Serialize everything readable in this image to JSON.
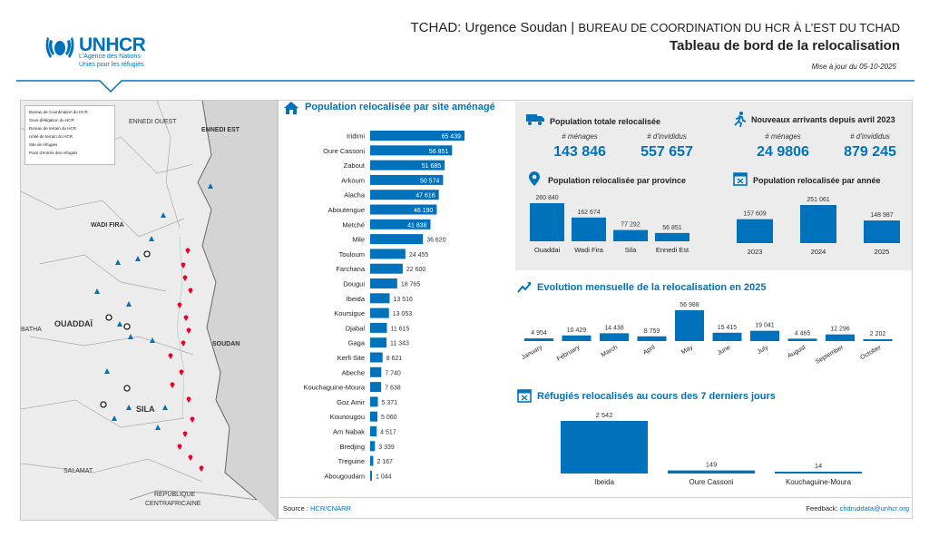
{
  "header": {
    "title_main": "TCHAD: Urgence Soudan",
    "title_sep": " | ",
    "title_sub": "BUREAU DE COORDINATION DU HCR À L’EST DU TCHAD",
    "board": "Tableau de bord de la relocalisation",
    "date": "Mise à jour du 05-10-2025"
  },
  "logo": {
    "name": "UNHCR",
    "line1": "L'Agence des Nations",
    "line2": "Unies pour les réfugiés"
  },
  "map": {
    "labels": {
      "ennedi_ouest": "ENNEDI OUEST",
      "ennedi_ouest2": "",
      "ennedi_est": "ENNEDI EST",
      "wadi_fira": "WADI FIRA",
      "ouaddai": "OUADDAÏ",
      "sila": "SILA",
      "soudan": "SOUDAN",
      "batha": "BATHA",
      "salamat": "SALAMAT",
      "rca1": "REPUBLIQUE",
      "rca2": "CENTRAFRICAINE"
    },
    "legend": [
      "Bureau de Coordination du HCR",
      "Sous-délégation du HCR",
      "Bureau de terrain du HCR",
      "Unité de terrain du HCR",
      "Site de réfugiés",
      "Point d'entrée des réfugiés"
    ]
  },
  "source": {
    "label": "Source : ",
    "value": "HCR/CNARR"
  },
  "feedback": {
    "label": "Feedback: ",
    "value": "chdruddata@unhcr.org"
  },
  "sections": {
    "by_site": "Population relocalisée par site aménagé",
    "total": "Population totale relocalisée",
    "new_arrivals": "Nouveaux arrivants depuis avril 2023",
    "by_province": "Population relocalisée par province",
    "by_year": "Population relocalisée par année",
    "monthly": "Evolution mensuelle de la relocalisation en 2025",
    "last7": "Réfugiés relocalisés au cours des 7 derniers jours"
  },
  "kpis": {
    "total": {
      "menages_label": "# ménages",
      "menages": "143 846",
      "individus_label": "# d'invididus",
      "individus": "557 657"
    },
    "new_arrivals": {
      "menages_label": "# ménages",
      "menages": "24 9806",
      "individus_label": "# d'invididus",
      "individus": "879 245"
    }
  },
  "colors": {
    "accent": "#0072BC",
    "gray_panel": "#ececec",
    "point": "#E4002B"
  },
  "chart_data": [
    {
      "type": "bar",
      "orientation": "horizontal",
      "title": "Population relocalisée par site aménagé",
      "categories": [
        "Iridimi",
        "Oure Cassoni",
        "Zabout",
        "Arkoum",
        "Alacha",
        "Aboutengue",
        "Metché",
        "Mile",
        "Touloum",
        "Farchana",
        "Dougui",
        "Ibeida",
        "Koursigue",
        "Djabal",
        "Gaga",
        "Kerfi Site",
        "Abeche",
        "Kouchaguine-Moura",
        "Goz Amir",
        "Kounougou",
        "Am Nabak",
        "Bredjing",
        "Treguine",
        "Abougoudam"
      ],
      "values": [
        65439,
        56851,
        51685,
        50574,
        47616,
        46190,
        41838,
        36620,
        24455,
        22600,
        18765,
        13516,
        13053,
        11615,
        11343,
        8621,
        7740,
        7638,
        5371,
        5060,
        4517,
        3339,
        2167,
        1044
      ],
      "labels": [
        "65 439",
        "56 851",
        "51 685",
        "50 574",
        "47 616",
        "46 190",
        "41 838",
        "36 620",
        "24 455",
        "22 600",
        "18 765",
        "13 516",
        "13 053",
        "11 615",
        "11 343",
        "8 621",
        "7 740",
        "7 638",
        "5 371",
        "5 060",
        "4 517",
        "3 339",
        "2 167",
        "1 044"
      ]
    },
    {
      "type": "bar",
      "title": "Population relocalisée par province",
      "categories": [
        "Ouaddai",
        "Wadi Fira",
        "Sila",
        "Ennedi Est"
      ],
      "values": [
        260840,
        162674,
        77292,
        56851
      ],
      "labels": [
        "260 840",
        "162 674",
        "77 292",
        "56 851"
      ]
    },
    {
      "type": "bar",
      "title": "Population relocalisée par année",
      "categories": [
        "2023",
        "2024",
        "2025"
      ],
      "values": [
        157609,
        251061,
        148987
      ],
      "labels": [
        "157 609",
        "251 061",
        "148 987"
      ]
    },
    {
      "type": "bar",
      "title": "Evolution mensuelle de la relocalisation en 2025",
      "categories": [
        "January",
        "February",
        "March",
        "April",
        "May",
        "June",
        "July",
        "August",
        "September",
        "October"
      ],
      "values": [
        4954,
        10429,
        14438,
        8759,
        56988,
        15415,
        19041,
        4465,
        12296,
        2202
      ],
      "labels": [
        "4 954",
        "10 429",
        "14 438",
        "8 759",
        "56 988",
        "15 415",
        "19 041",
        "4 465",
        "12 296",
        "2 202"
      ]
    },
    {
      "type": "bar",
      "title": "Réfugiés relocalisés au cours des 7 derniers jours",
      "categories": [
        "Ibeida",
        "Oure Cassoni",
        "Kouchaguine-Moura"
      ],
      "values": [
        2542,
        149,
        14
      ],
      "labels": [
        "2 542",
        "149",
        "14"
      ]
    }
  ]
}
